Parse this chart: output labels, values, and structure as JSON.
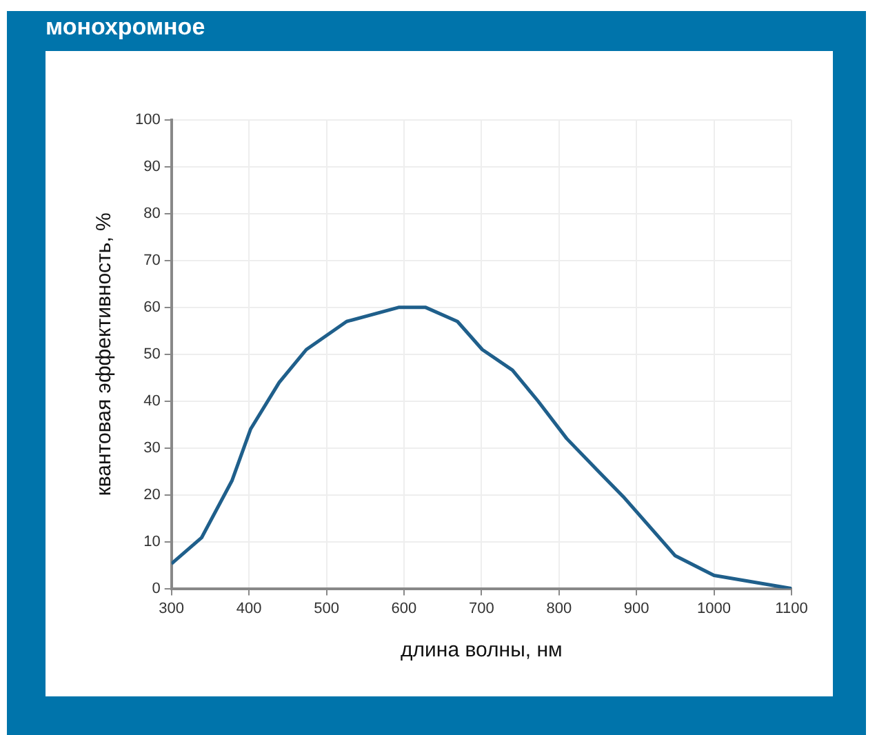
{
  "chart_data": {
    "type": "line",
    "title": "монохромное",
    "xlabel": "длина волны, нм",
    "ylabel": "квантовая эффективность, %",
    "x": [
      300,
      339,
      378,
      402,
      439,
      474,
      526,
      593,
      628,
      669,
      701,
      740,
      773,
      810,
      851,
      883,
      950,
      1000,
      1100
    ],
    "series": [
      {
        "color": "#1f5f8b",
        "values": [
          5.3,
          10.9,
          23,
          34,
          44,
          51,
          57,
          60,
          60,
          57,
          51,
          46.6,
          40,
          32,
          25,
          19.6,
          7,
          2.8,
          0
        ]
      }
    ],
    "xlim": [
      300,
      1100
    ],
    "xticks": [
      300,
      400,
      500,
      600,
      700,
      800,
      900,
      1000,
      1100
    ],
    "ylim": [
      0,
      100
    ],
    "yticks": [
      0,
      10,
      20,
      30,
      40,
      50,
      60,
      70,
      80,
      90,
      100
    ],
    "grid": true,
    "marker": "none",
    "line_style": "solid"
  }
}
